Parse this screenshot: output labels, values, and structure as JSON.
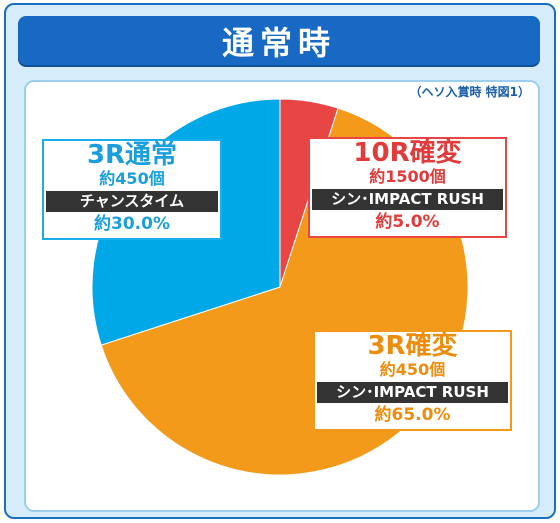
{
  "title": "通常時",
  "note": "（ヘソ入賞時 特図1）",
  "colors": {
    "frame_border": "#1a6fbf",
    "frame_bg": "#d6ecfb",
    "title_bar": "#1769c4",
    "slice_3r_normal": "#00a8e8",
    "slice_10r": "#e84545",
    "slice_3r_kakuhen": "#f39a1a"
  },
  "callouts": {
    "normal_3r": {
      "label": "3R通常",
      "count": "約450個",
      "mode": "チャンスタイム",
      "pct": "約30.0%"
    },
    "kakuhen_10r": {
      "label": "10R確変",
      "count": "約1500個",
      "mode": "シン･IMPACT RUSH",
      "pct": "約5.0%"
    },
    "kakuhen_3r": {
      "label": "3R確変",
      "count": "約450個",
      "mode": "シン･IMPACT RUSH",
      "pct": "約65.0%"
    }
  },
  "chart_data": {
    "type": "pie",
    "title": "通常時",
    "subtitle": "（ヘソ入賞時 特図1）",
    "start": "12 o'clock, clockwise",
    "slices": [
      {
        "label": "10R確変",
        "value": 5.0,
        "color": "#e84545"
      },
      {
        "label": "3R確変",
        "value": 65.0,
        "color": "#f39a1a"
      },
      {
        "label": "3R通常",
        "value": 30.0,
        "color": "#00a8e8"
      }
    ]
  }
}
